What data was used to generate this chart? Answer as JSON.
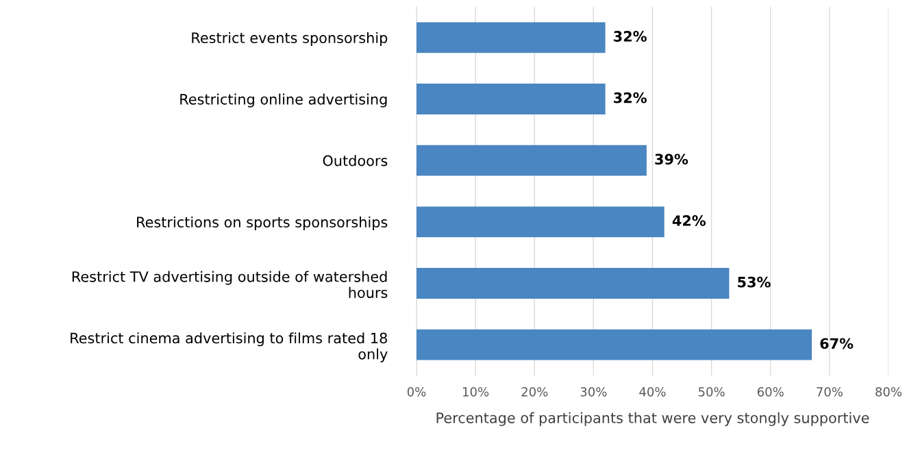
{
  "chart_data": {
    "type": "bar",
    "orientation": "horizontal",
    "xlabel": "Percentage of participants that were very stongly supportive",
    "categories": [
      "Restrict events sponsorship",
      "Restricting online advertising",
      "Outdoors",
      "Restrictions on sports sponsorships",
      "Restrict TV advertising outside of watershed\nhours",
      "Restrict cinema advertising to films rated 18\nonly"
    ],
    "values": [
      32,
      32,
      39,
      42,
      53,
      67
    ],
    "value_labels": [
      "32%",
      "32%",
      "39%",
      "42%",
      "53%",
      "67%"
    ],
    "color": "#4a86c1",
    "xlim": [
      0,
      80
    ],
    "xticks": [
      {
        "value": 0,
        "label": "0%"
      },
      {
        "value": 10,
        "label": "10%"
      },
      {
        "value": 20,
        "label": "20%"
      },
      {
        "value": 30,
        "label": "30%"
      },
      {
        "value": 40,
        "label": "40%"
      },
      {
        "value": 50,
        "label": "50%"
      },
      {
        "value": 60,
        "label": "60%"
      },
      {
        "value": 70,
        "label": "70%"
      },
      {
        "value": 80,
        "label": "80%"
      }
    ],
    "grid": "x",
    "legend": false
  }
}
